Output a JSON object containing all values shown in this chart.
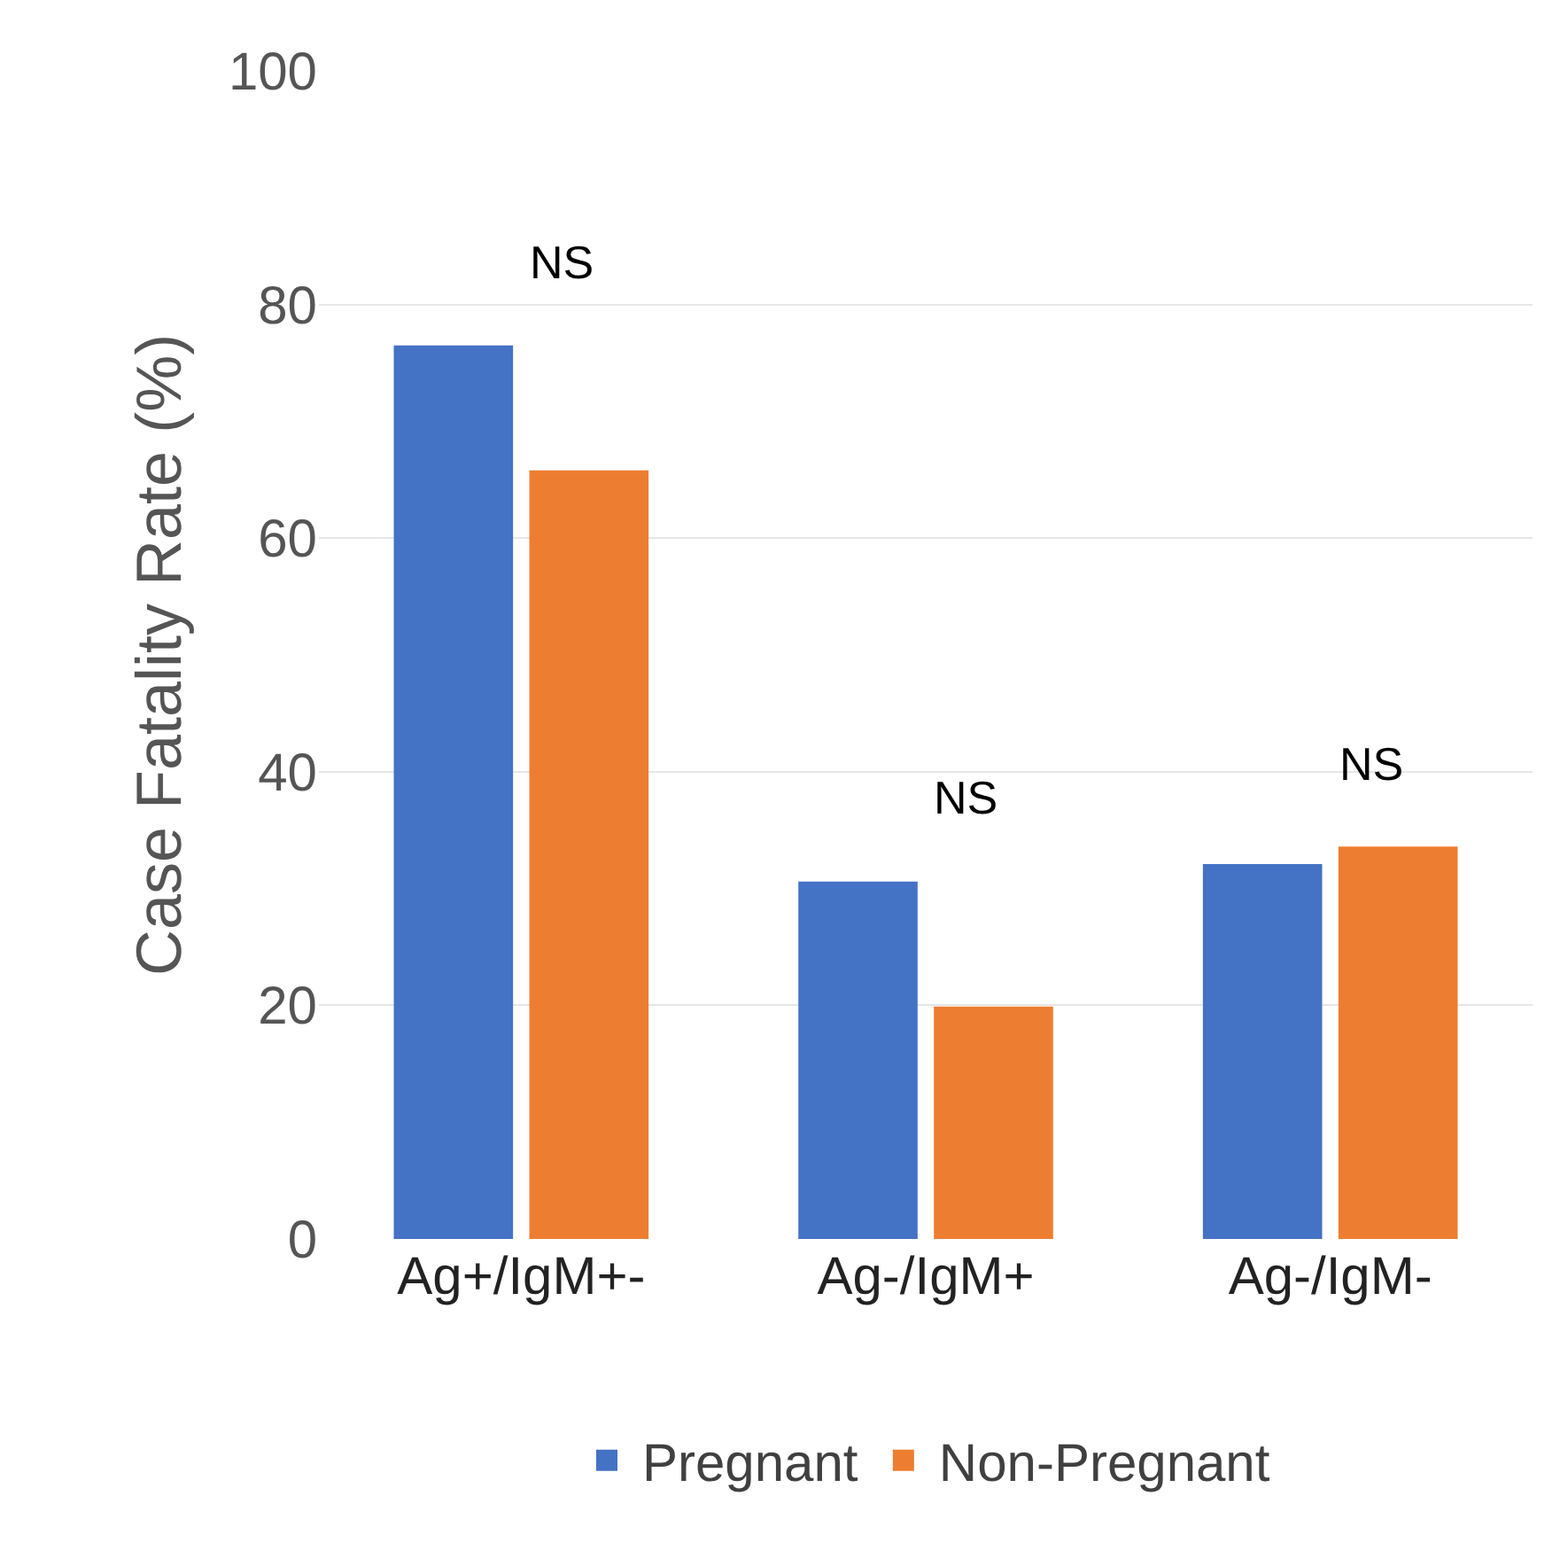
{
  "chart_data": {
    "type": "bar",
    "ylabel": "Case Fatality Rate (%)",
    "categories": [
      "Ag+/IgM+-",
      "Ag-/IgM+",
      "Ag-/IgM-"
    ],
    "series": [
      {
        "name": "Pregnant",
        "color": "#4472c4",
        "values": [
          76.5,
          30.6,
          32.1
        ]
      },
      {
        "name": "Non-Pregnant",
        "color": "#ed7d31",
        "values": [
          65.8,
          19.9,
          33.6
        ]
      }
    ],
    "ylim": [
      0,
      100
    ],
    "yticks": [
      0,
      20,
      40,
      60,
      80,
      100
    ],
    "grid": "y",
    "legend": "bottom",
    "annotations": [
      "NS",
      "NS",
      "NS"
    ]
  }
}
